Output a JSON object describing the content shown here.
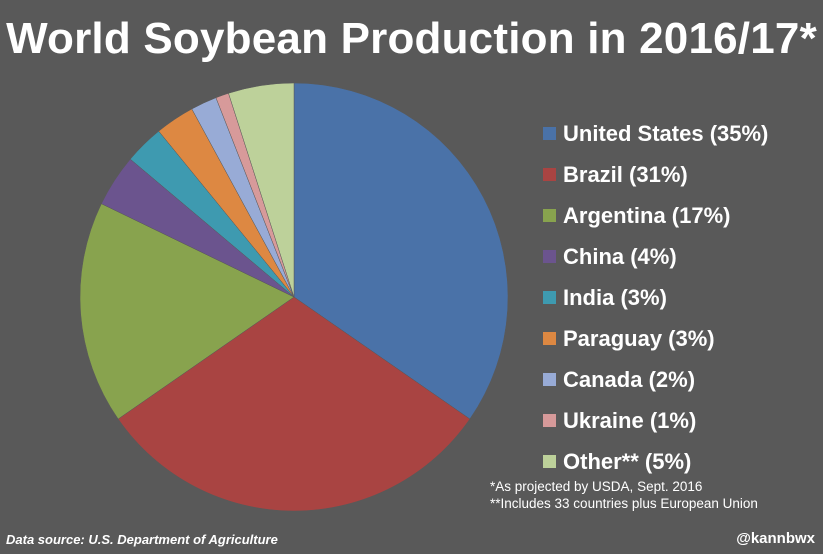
{
  "chart_data": {
    "type": "pie",
    "title": "World Soybean Production in 2016/17*",
    "legend_position": "right",
    "slices": [
      {
        "label": "United States (35%)",
        "value": 35,
        "color": "#4A72A8"
      },
      {
        "label": "Brazil (31%)",
        "value": 31,
        "color": "#A94442"
      },
      {
        "label": "Argentina (17%)",
        "value": 17,
        "color": "#88A34E"
      },
      {
        "label": "China (4%)",
        "value": 4,
        "color": "#6B548E"
      },
      {
        "label": "India (3%)",
        "value": 3,
        "color": "#3E9AB0"
      },
      {
        "label": "Paraguay (3%)",
        "value": 3,
        "color": "#DD8842"
      },
      {
        "label": "Canada (2%)",
        "value": 2,
        "color": "#98ABD6"
      },
      {
        "label": "Ukraine (1%)",
        "value": 1,
        "color": "#D79A9A"
      },
      {
        "label": "Other** (5%)",
        "value": 5,
        "color": "#BDD19A"
      }
    ]
  },
  "notes": {
    "line1": "*As projected by USDA, Sept. 2016",
    "line2": "**Includes 33 countries plus European Union"
  },
  "source": "Data source: U.S. Department of Agriculture",
  "handle": "@kannbwx"
}
